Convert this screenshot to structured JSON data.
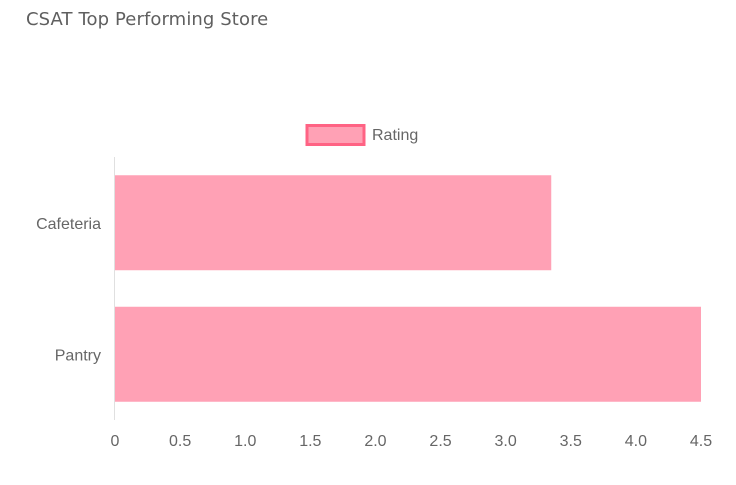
{
  "card": {
    "title": "CSAT Top Performing Store"
  },
  "colors": {
    "bar_fill": "#ffa1b5",
    "bar_border": "#ff6384",
    "axis_line": "#e0e0e0",
    "tick_text": "#666666",
    "title_text": "#5f5f5f"
  },
  "chart_data": {
    "type": "bar",
    "orientation": "horizontal",
    "title": "",
    "xlabel": "",
    "ylabel": "",
    "categories": [
      "Cafeteria",
      "Pantry"
    ],
    "series": [
      {
        "name": "Rating",
        "values": [
          3.35,
          4.5
        ]
      }
    ],
    "xlim": [
      0,
      4.5
    ],
    "x_ticks": [
      "0",
      "0.5",
      "1.0",
      "1.5",
      "2.0",
      "2.5",
      "3.0",
      "3.5",
      "4.0",
      "4.5"
    ],
    "legend": "top",
    "grid": false
  }
}
